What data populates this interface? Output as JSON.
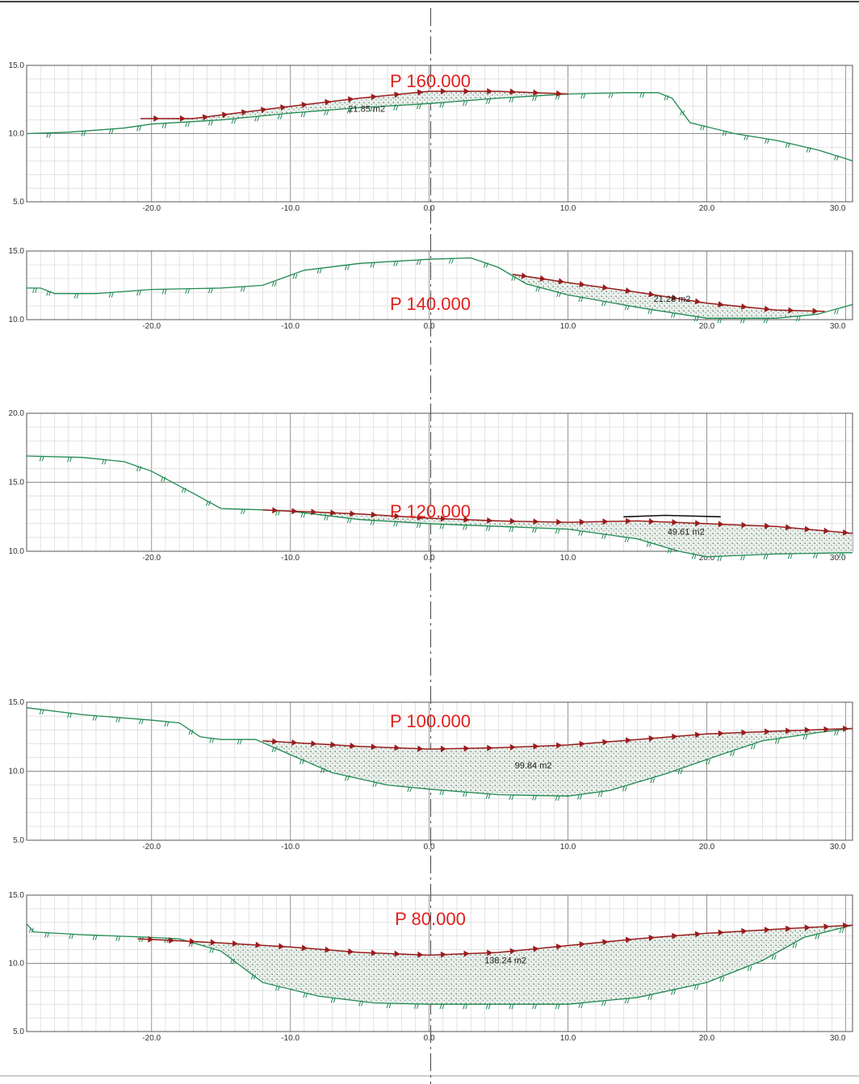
{
  "colors": {
    "terrain": "#1f8a50",
    "project": "#9a1c1c",
    "label": "#e0201c",
    "hatch": "#7ad0a0",
    "grid_minor": "#c9c9c9",
    "grid_major": "#8a8a8a"
  },
  "chart_data": [
    {
      "type": "line",
      "profile_label": "P 160.000",
      "area_label": "21.85 m2",
      "area_at": [
        -4.5,
        11.6
      ],
      "xlim": [
        -29,
        30.5
      ],
      "ylim": [
        5,
        15
      ],
      "x_ticks": [
        "-20.0",
        "-10.0",
        "0.0",
        "10.0",
        "20.0",
        "30.0"
      ],
      "y_ticks": [
        "5.0",
        "10.0",
        "15.0"
      ],
      "terrain": [
        [
          -29,
          10.0
        ],
        [
          -26,
          10.1
        ],
        [
          -22,
          10.4
        ],
        [
          -20,
          10.7
        ],
        [
          -15,
          11.0
        ],
        [
          -10,
          11.5
        ],
        [
          -5,
          11.9
        ],
        [
          0,
          12.2
        ],
        [
          5,
          12.6
        ],
        [
          10,
          12.9
        ],
        [
          14,
          13.0
        ],
        [
          16.5,
          13.0
        ],
        [
          17.5,
          12.6
        ],
        [
          18.8,
          10.8
        ],
        [
          22,
          10.0
        ],
        [
          25,
          9.5
        ],
        [
          28,
          8.8
        ],
        [
          30.5,
          8.0
        ]
      ],
      "project": [
        [
          -20.8,
          11.1
        ],
        [
          -17,
          11.1
        ],
        [
          -10,
          12.0
        ],
        [
          -5,
          12.6
        ],
        [
          0,
          13.1
        ],
        [
          5,
          13.1
        ],
        [
          10,
          12.9
        ]
      ],
      "cut_bottom": [
        [
          -20.8,
          11.1
        ],
        [
          -17,
          11.0
        ],
        [
          -15,
          11.0
        ],
        [
          -10,
          11.5
        ],
        [
          -5,
          11.9
        ],
        [
          0,
          12.2
        ],
        [
          5,
          12.6
        ],
        [
          10,
          12.9
        ]
      ]
    },
    {
      "type": "line",
      "profile_label": "P 140.000",
      "area_label": "21.28 m2",
      "area_at": [
        17.5,
        11.3
      ],
      "xlim": [
        -29,
        30.5
      ],
      "ylim": [
        10,
        15
      ],
      "x_ticks": [
        "-20.0",
        "-10.0",
        "0.0",
        "10.0",
        "20.0",
        "30.0"
      ],
      "y_ticks": [
        "10.0",
        "15.0"
      ],
      "terrain": [
        [
          -29,
          12.3
        ],
        [
          -28,
          12.3
        ],
        [
          -27,
          11.9
        ],
        [
          -24,
          11.9
        ],
        [
          -20,
          12.2
        ],
        [
          -15,
          12.3
        ],
        [
          -12,
          12.5
        ],
        [
          -9,
          13.6
        ],
        [
          -5,
          14.1
        ],
        [
          0,
          14.4
        ],
        [
          3,
          14.5
        ],
        [
          5,
          13.8
        ],
        [
          7,
          12.6
        ],
        [
          10,
          11.8
        ],
        [
          15,
          10.9
        ],
        [
          20,
          10.1
        ],
        [
          25,
          10.1
        ],
        [
          28,
          10.4
        ],
        [
          30.5,
          11.1
        ]
      ],
      "project": [
        [
          6,
          13.3
        ],
        [
          10,
          12.7
        ],
        [
          15,
          12.0
        ],
        [
          20,
          11.2
        ],
        [
          25,
          10.7
        ],
        [
          28.5,
          10.6
        ]
      ],
      "cut_bottom": [
        [
          6,
          13.3
        ],
        [
          7,
          12.6
        ],
        [
          10,
          11.8
        ],
        [
          15,
          10.9
        ],
        [
          20,
          10.1
        ],
        [
          25,
          10.1
        ],
        [
          28.5,
          10.6
        ]
      ]
    },
    {
      "type": "line",
      "profile_label": "P 120.000",
      "area_label": "49.61 m2",
      "area_at": [
        18.5,
        11.2
      ],
      "xlim": [
        -29,
        30.5
      ],
      "ylim": [
        10,
        20
      ],
      "x_ticks": [
        "-20.0",
        "-10.0",
        "0.0",
        "10.0",
        "20.0",
        "30.0"
      ],
      "y_ticks": [
        "10.0",
        "15.0",
        "20.0"
      ],
      "terrain": [
        [
          -29,
          16.9
        ],
        [
          -25,
          16.8
        ],
        [
          -22,
          16.5
        ],
        [
          -20,
          15.8
        ],
        [
          -17,
          14.2
        ],
        [
          -15,
          13.1
        ],
        [
          -12,
          13.0
        ],
        [
          -10,
          12.9
        ],
        [
          -5,
          12.3
        ],
        [
          0,
          12.0
        ],
        [
          5,
          11.8
        ],
        [
          10,
          11.6
        ],
        [
          15,
          10.9
        ],
        [
          18,
          10.0
        ],
        [
          20,
          9.6
        ],
        [
          25,
          9.8
        ],
        [
          30.5,
          9.9
        ]
      ],
      "project": [
        [
          -12,
          13.0
        ],
        [
          -5,
          12.7
        ],
        [
          0,
          12.4
        ],
        [
          5,
          12.2
        ],
        [
          10,
          12.1
        ],
        [
          15,
          12.2
        ],
        [
          20,
          12.0
        ],
        [
          25,
          11.8
        ],
        [
          30.5,
          11.3
        ]
      ],
      "cut_bottom": [
        [
          -12,
          13.0
        ],
        [
          -10,
          12.9
        ],
        [
          -5,
          12.3
        ],
        [
          0,
          12.0
        ],
        [
          5,
          11.8
        ],
        [
          10,
          11.6
        ],
        [
          15,
          10.9
        ],
        [
          18,
          10.0
        ],
        [
          20,
          9.6
        ],
        [
          25,
          9.8
        ],
        [
          30.5,
          9.9
        ]
      ],
      "extra_line": [
        [
          14,
          12.5
        ],
        [
          17,
          12.6
        ],
        [
          21,
          12.5
        ]
      ]
    },
    {
      "type": "line",
      "profile_label": "P 100.000",
      "area_label": "99.84 m2",
      "area_at": [
        7.5,
        10.2
      ],
      "xlim": [
        -29,
        30.5
      ],
      "ylim": [
        5,
        15
      ],
      "x_ticks": [
        "-20.0",
        "-10.0",
        "0.0",
        "10.0",
        "20.0",
        "30.0"
      ],
      "y_ticks": [
        "5.0",
        "10.0",
        "15.0"
      ],
      "terrain": [
        [
          -29,
          14.6
        ],
        [
          -25,
          14.1
        ],
        [
          -20,
          13.7
        ],
        [
          -18,
          13.5
        ],
        [
          -16.5,
          12.5
        ],
        [
          -15,
          12.3
        ],
        [
          -12.5,
          12.3
        ],
        [
          -10,
          11.2
        ],
        [
          -7,
          9.9
        ],
        [
          -3,
          9.0
        ],
        [
          0,
          8.7
        ],
        [
          5,
          8.3
        ],
        [
          10,
          8.2
        ],
        [
          13,
          8.6
        ],
        [
          17,
          9.8
        ],
        [
          21,
          11.2
        ],
        [
          24,
          12.2
        ],
        [
          28,
          12.8
        ],
        [
          30.5,
          13.1
        ]
      ],
      "project": [
        [
          -12,
          12.2
        ],
        [
          -5,
          11.8
        ],
        [
          0,
          11.6
        ],
        [
          5,
          11.7
        ],
        [
          10,
          11.9
        ],
        [
          15,
          12.3
        ],
        [
          20,
          12.7
        ],
        [
          25,
          12.9
        ],
        [
          30.5,
          13.1
        ]
      ],
      "cut_bottom": [
        [
          -12,
          12.2
        ],
        [
          -10,
          11.2
        ],
        [
          -7,
          9.9
        ],
        [
          -3,
          9.0
        ],
        [
          0,
          8.7
        ],
        [
          5,
          8.3
        ],
        [
          10,
          8.2
        ],
        [
          13,
          8.6
        ],
        [
          17,
          9.8
        ],
        [
          21,
          11.2
        ],
        [
          24,
          12.2
        ],
        [
          28,
          12.8
        ],
        [
          30.5,
          13.1
        ]
      ]
    },
    {
      "type": "line",
      "profile_label": "P 80.000",
      "area_label": "138.24 m2",
      "area_at": [
        5.5,
        10.0
      ],
      "xlim": [
        -29,
        30.5
      ],
      "ylim": [
        5,
        15
      ],
      "x_ticks": [
        "-20.0",
        "-10.0",
        "0.0",
        "10.0",
        "20.0",
        "30.0"
      ],
      "y_ticks": [
        "5.0",
        "10.0",
        "15.0"
      ],
      "terrain": [
        [
          -29,
          12.9
        ],
        [
          -28.5,
          12.3
        ],
        [
          -25,
          12.1
        ],
        [
          -20,
          11.9
        ],
        [
          -18,
          11.8
        ],
        [
          -15,
          10.9
        ],
        [
          -12,
          8.6
        ],
        [
          -8,
          7.6
        ],
        [
          -4,
          7.1
        ],
        [
          0,
          7.0
        ],
        [
          5,
          7.0
        ],
        [
          10,
          7.0
        ],
        [
          15,
          7.5
        ],
        [
          20,
          8.6
        ],
        [
          24,
          10.2
        ],
        [
          27,
          11.9
        ],
        [
          30.5,
          12.8
        ]
      ],
      "project": [
        [
          -21,
          11.8
        ],
        [
          -15,
          11.5
        ],
        [
          -10,
          11.2
        ],
        [
          -5,
          10.8
        ],
        [
          0,
          10.6
        ],
        [
          5,
          10.8
        ],
        [
          10,
          11.3
        ],
        [
          15,
          11.8
        ],
        [
          20,
          12.2
        ],
        [
          25,
          12.5
        ],
        [
          30.5,
          12.8
        ]
      ],
      "cut_bottom": [
        [
          -21,
          11.8
        ],
        [
          -18,
          11.8
        ],
        [
          -15,
          10.9
        ],
        [
          -12,
          8.6
        ],
        [
          -8,
          7.6
        ],
        [
          -4,
          7.1
        ],
        [
          0,
          7.0
        ],
        [
          5,
          7.0
        ],
        [
          10,
          7.0
        ],
        [
          15,
          7.5
        ],
        [
          20,
          8.6
        ],
        [
          24,
          10.2
        ],
        [
          27,
          11.9
        ],
        [
          30.5,
          12.8
        ]
      ]
    }
  ]
}
